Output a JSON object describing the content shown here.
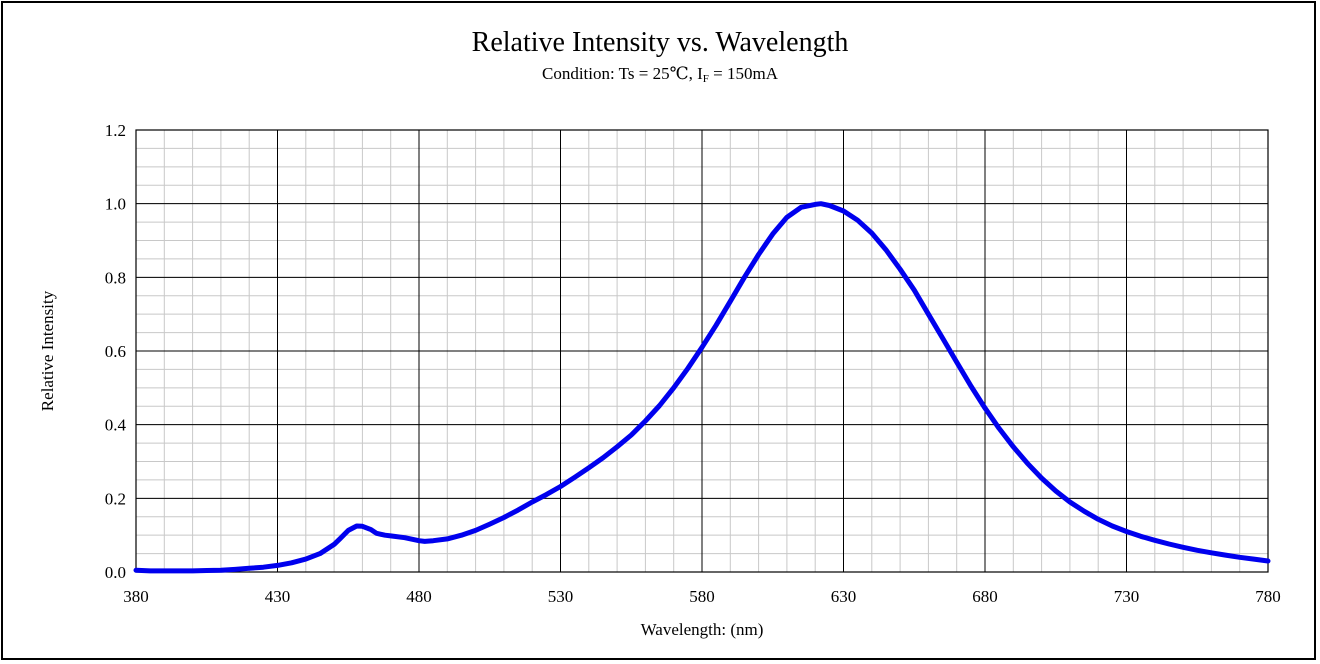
{
  "chart_data": {
    "type": "line",
    "title": "Relative Intensity vs. Wavelength",
    "subtitle": {
      "prefix": "Condition: Ts = 25℃, I",
      "sub": "F",
      "suffix": " = 150mA"
    },
    "xlabel": "Wavelength: (nm)",
    "ylabel": "Relative Intensity",
    "xlim": [
      380,
      780
    ],
    "ylim": [
      0,
      1.2
    ],
    "x_ticks": [
      "380",
      "430",
      "480",
      "530",
      "580",
      "630",
      "680",
      "730",
      "780"
    ],
    "y_ticks": [
      "0.0",
      "0.2",
      "0.4",
      "0.6",
      "0.8",
      "1.0",
      "1.2"
    ],
    "grid": true,
    "legend": "none",
    "line_color": "#0000ee",
    "series": [
      {
        "x": [
          380,
          385,
          390,
          395,
          400,
          405,
          410,
          415,
          420,
          425,
          430,
          435,
          440,
          445,
          450,
          452,
          455,
          458,
          460,
          463,
          465,
          468,
          470,
          475,
          480,
          482,
          485,
          490,
          495,
          500,
          505,
          510,
          515,
          520,
          525,
          530,
          535,
          540,
          545,
          550,
          555,
          560,
          565,
          570,
          575,
          580,
          585,
          590,
          595,
          600,
          605,
          610,
          615,
          620,
          622,
          625,
          630,
          635,
          640,
          645,
          650,
          655,
          660,
          665,
          670,
          675,
          680,
          685,
          690,
          695,
          700,
          705,
          710,
          715,
          720,
          725,
          730,
          735,
          740,
          745,
          750,
          755,
          760,
          765,
          770,
          775,
          780
        ],
        "y": [
          0.005,
          0.003,
          0.003,
          0.003,
          0.003,
          0.004,
          0.005,
          0.007,
          0.01,
          0.013,
          0.018,
          0.025,
          0.035,
          0.05,
          0.075,
          0.09,
          0.113,
          0.125,
          0.124,
          0.115,
          0.105,
          0.1,
          0.098,
          0.093,
          0.085,
          0.083,
          0.085,
          0.09,
          0.1,
          0.113,
          0.13,
          0.148,
          0.168,
          0.19,
          0.21,
          0.232,
          0.257,
          0.283,
          0.31,
          0.34,
          0.372,
          0.41,
          0.452,
          0.5,
          0.553,
          0.61,
          0.67,
          0.735,
          0.8,
          0.862,
          0.918,
          0.963,
          0.99,
          0.998,
          1.0,
          0.995,
          0.98,
          0.955,
          0.92,
          0.875,
          0.822,
          0.765,
          0.7,
          0.635,
          0.57,
          0.505,
          0.445,
          0.39,
          0.34,
          0.295,
          0.255,
          0.22,
          0.19,
          0.165,
          0.143,
          0.125,
          0.11,
          0.097,
          0.086,
          0.076,
          0.067,
          0.059,
          0.052,
          0.046,
          0.04,
          0.035,
          0.03
        ]
      }
    ]
  }
}
